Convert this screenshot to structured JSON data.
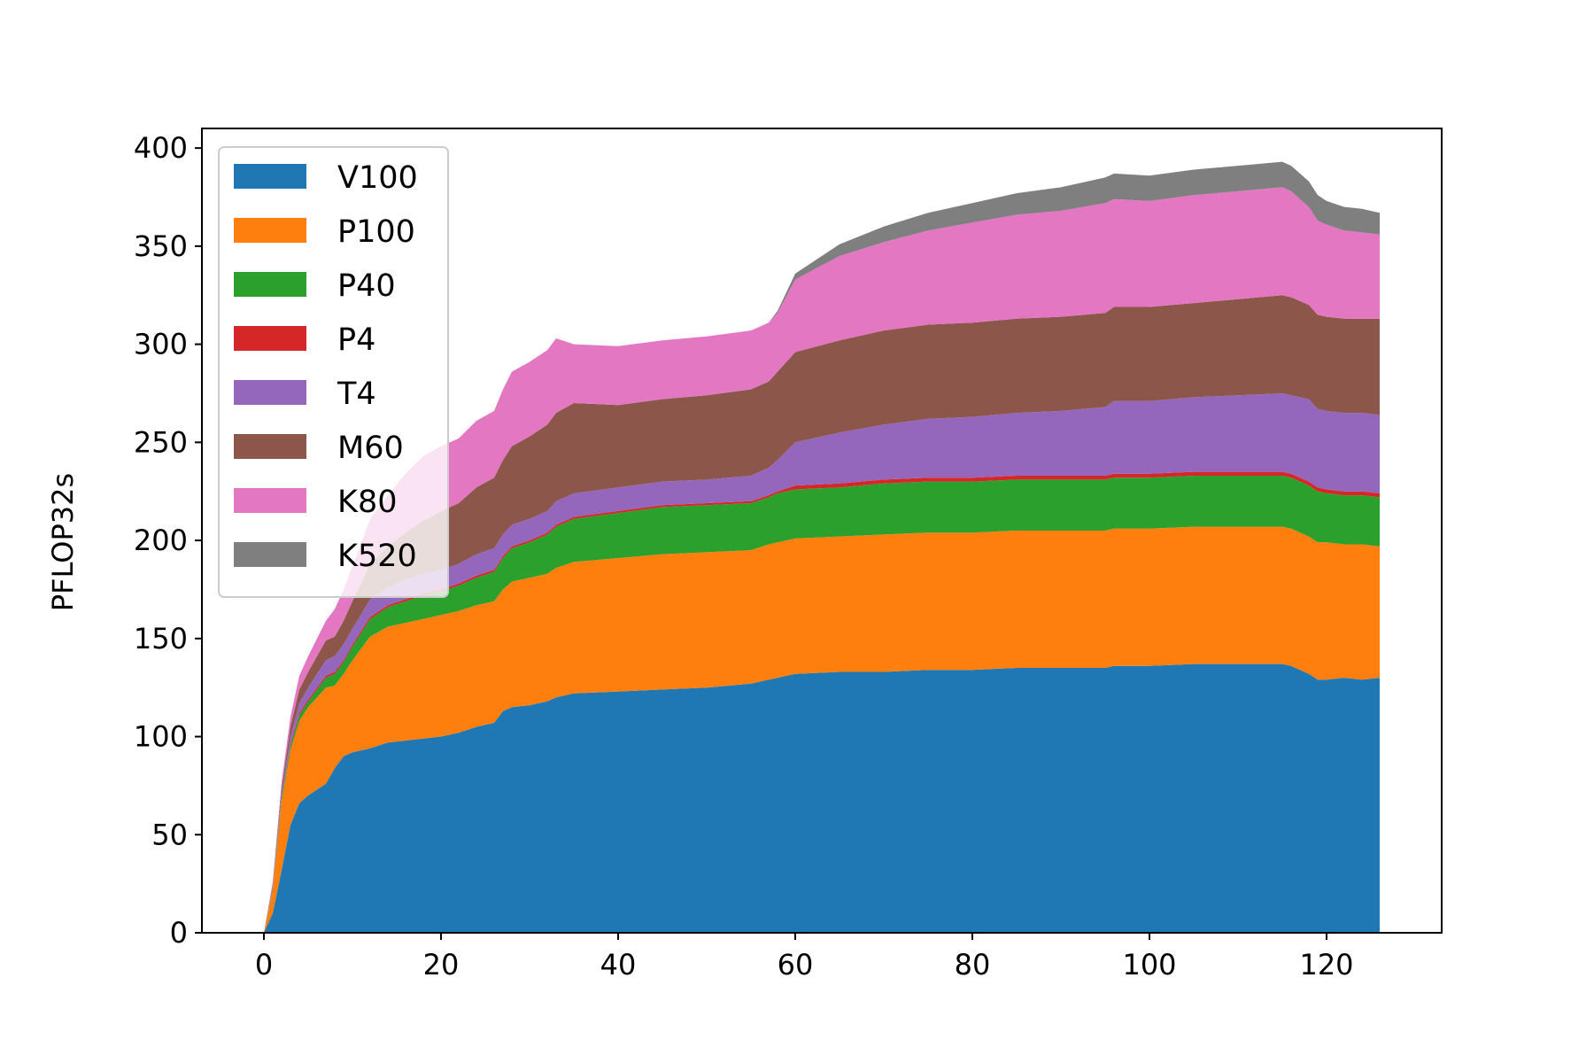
{
  "chart_data": {
    "type": "area",
    "stacked": true,
    "title": "",
    "xlabel": "",
    "ylabel": "PFLOP32s",
    "xlim": [
      -7,
      133
    ],
    "ylim": [
      0,
      410
    ],
    "x_ticks": [
      0,
      20,
      40,
      60,
      80,
      100,
      120
    ],
    "y_ticks": [
      0,
      50,
      100,
      150,
      200,
      250,
      300,
      350,
      400
    ],
    "grid": false,
    "legend_position": "upper-left",
    "x": [
      0,
      1,
      2,
      3,
      4,
      5,
      6,
      7,
      8,
      9,
      10,
      12,
      14,
      16,
      18,
      20,
      22,
      24,
      26,
      27,
      28,
      30,
      32,
      33,
      35,
      40,
      45,
      50,
      55,
      57,
      58,
      60,
      65,
      70,
      75,
      80,
      85,
      90,
      95,
      96,
      100,
      105,
      110,
      115,
      116,
      117,
      118,
      119,
      120,
      122,
      124,
      126
    ],
    "series": [
      {
        "name": "V100",
        "color": "#1f77b4",
        "values": [
          0,
          10,
          32,
          55,
          66,
          70,
          73,
          76,
          84,
          90,
          92,
          94,
          97,
          98,
          99,
          100,
          102,
          105,
          107,
          113,
          115,
          116,
          118,
          120,
          122,
          123,
          124,
          125,
          127,
          129,
          130,
          132,
          133,
          133,
          134,
          134,
          135,
          135,
          135,
          136,
          136,
          137,
          137,
          137,
          136,
          134,
          132,
          129,
          129,
          130,
          129,
          130
        ]
      },
      {
        "name": "P100",
        "color": "#ff7f0e",
        "values": [
          0,
          12,
          35,
          38,
          42,
          45,
          47,
          49,
          42,
          42,
          47,
          57,
          59,
          60,
          61,
          62,
          62,
          62,
          62,
          62,
          64,
          65,
          65,
          66,
          67,
          68,
          69,
          69,
          68,
          69,
          69,
          69,
          69,
          70,
          70,
          70,
          70,
          70,
          70,
          70,
          70,
          70,
          70,
          70,
          70,
          70,
          70,
          70,
          70,
          68,
          69,
          67
        ]
      },
      {
        "name": "P40",
        "color": "#2ca02c",
        "values": [
          0,
          1,
          2,
          2,
          3,
          3,
          4,
          5,
          6,
          6,
          7,
          9,
          10,
          11,
          12,
          12,
          13,
          14,
          15,
          16,
          17,
          18,
          20,
          21,
          22,
          23,
          24,
          24,
          24,
          24,
          25,
          25,
          25,
          26,
          26,
          26,
          26,
          26,
          26,
          26,
          26,
          26,
          26,
          26,
          26,
          26,
          26,
          26,
          25,
          25,
          25,
          25
        ]
      },
      {
        "name": "P4",
        "color": "#d62728",
        "values": [
          0,
          0,
          0,
          1,
          1,
          1,
          1,
          1,
          1,
          1,
          1,
          1,
          1,
          1,
          1,
          1,
          1,
          1,
          1,
          1,
          1,
          1,
          1,
          1,
          1,
          1,
          1,
          1,
          1,
          1,
          1,
          2,
          2,
          2,
          2,
          2,
          2,
          2,
          2,
          2,
          2,
          2,
          2,
          2,
          2,
          2,
          2,
          2,
          2,
          2,
          2,
          2
        ]
      },
      {
        "name": "T4",
        "color": "#9467bd",
        "values": [
          0,
          1,
          2,
          4,
          5,
          6,
          7,
          8,
          8,
          8,
          8,
          9,
          9,
          10,
          10,
          10,
          10,
          11,
          11,
          11,
          11,
          11,
          11,
          12,
          12,
          12,
          12,
          12,
          13,
          14,
          16,
          22,
          26,
          28,
          30,
          31,
          32,
          33,
          35,
          37,
          37,
          38,
          39,
          40,
          40,
          41,
          42,
          40,
          40,
          40,
          40,
          40
        ]
      },
      {
        "name": "M60",
        "color": "#8c564b",
        "values": [
          0,
          1,
          3,
          5,
          7,
          8,
          9,
          10,
          10,
          12,
          14,
          18,
          21,
          24,
          27,
          30,
          31,
          34,
          36,
          38,
          40,
          42,
          44,
          45,
          46,
          42,
          42,
          43,
          44,
          44,
          45,
          46,
          47,
          48,
          48,
          48,
          48,
          48,
          48,
          48,
          48,
          48,
          49,
          50,
          50,
          49,
          48,
          48,
          48,
          48,
          48,
          49
        ]
      },
      {
        "name": "K80",
        "color": "#e377c2",
        "values": [
          0,
          1,
          3,
          5,
          7,
          8,
          9,
          10,
          14,
          16,
          18,
          23,
          26,
          30,
          33,
          33,
          33,
          34,
          34,
          36,
          38,
          38,
          38,
          38,
          30,
          30,
          30,
          30,
          30,
          30,
          30,
          37,
          43,
          45,
          48,
          51,
          53,
          54,
          56,
          55,
          54,
          55,
          55,
          55,
          54,
          52,
          50,
          48,
          47,
          45,
          44,
          43
        ]
      },
      {
        "name": "K520",
        "color": "#7f7f7f",
        "values": [
          0,
          0,
          0,
          0,
          0,
          0,
          0,
          0,
          0,
          0,
          0,
          0,
          0,
          0,
          0,
          0,
          0,
          0,
          0,
          0,
          0,
          0,
          0,
          0,
          0,
          0,
          0,
          0,
          0,
          0,
          1,
          3,
          6,
          8,
          9,
          10,
          11,
          12,
          13,
          13,
          13,
          13,
          13,
          13,
          13,
          13,
          13,
          13,
          12,
          12,
          12,
          11
        ]
      }
    ]
  }
}
